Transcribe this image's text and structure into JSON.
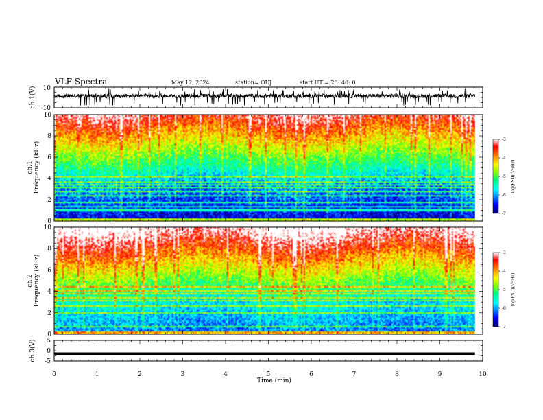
{
  "header": {
    "title": "VLF Spectra",
    "date": "May 12, 2024",
    "station": "station= OUJ",
    "start": "start  UT  =   20: 40: 0"
  },
  "colors": {
    "axis": "#000000",
    "colormap": [
      "#00008b",
      "#0000ff",
      "#00bfff",
      "#00ffff",
      "#7fff00",
      "#ffff00",
      "#ff7f00",
      "#ff0000",
      "#ffffff"
    ]
  },
  "chart_data": [
    {
      "type": "line",
      "panel": "ch1-waveform",
      "ylabel": "ch.1(V)",
      "ylim": [
        -10,
        10
      ],
      "yticks": [
        "10",
        "-10"
      ],
      "xlim": [
        0,
        10
      ],
      "data_extent": [
        0,
        9.82
      ],
      "baseline": 1.5,
      "series": [
        {
          "values_summary": "noisy waveform, mostly between -3 and 4 V with occasional spikes"
        }
      ]
    },
    {
      "type": "heatmap",
      "panel": "ch1-spectrogram",
      "ylabel_1": "ch.1",
      "ylabel_2": "Frequency  (kHz)",
      "ylim": [
        0,
        10
      ],
      "yticks": [
        "0",
        "2",
        "4",
        "6",
        "8",
        "10"
      ],
      "xlim": [
        0,
        10
      ],
      "data_extent": [
        0,
        9.82
      ],
      "colorbar": {
        "label": "log(PSD)(V²/Hz)",
        "ticks": [
          "-3",
          "-4",
          "-5",
          "-6",
          "-7"
        ],
        "range": [
          -7,
          -3
        ]
      }
    },
    {
      "type": "heatmap",
      "panel": "ch2-spectrogram",
      "ylabel_1": "ch.2",
      "ylabel_2": "Frequency  (kHz)",
      "ylim": [
        0,
        10
      ],
      "yticks": [
        "0",
        "2",
        "4",
        "6",
        "8",
        "10"
      ],
      "xlim": [
        0,
        10
      ],
      "data_extent": [
        0,
        9.82
      ],
      "colorbar": {
        "label": "log(PSD)(V²/Hz)",
        "ticks": [
          "-3",
          "-4",
          "-5",
          "-6",
          "-7"
        ],
        "range": [
          -7,
          -3
        ]
      }
    },
    {
      "type": "line",
      "panel": "ch3-waveform",
      "ylabel": "ch.3(V)",
      "ylim": [
        -5,
        5
      ],
      "yticks": [
        "5",
        "0",
        "-5"
      ],
      "xlim": [
        0,
        10
      ],
      "data_extent": [
        0,
        9.82
      ],
      "series": [
        {
          "values_summary": "nearly flat line at about -1.4 V"
        }
      ]
    }
  ],
  "xaxis": {
    "label": "Time  (min)",
    "ticks": [
      "0",
      "1",
      "2",
      "3",
      "4",
      "5",
      "6",
      "7",
      "8",
      "9",
      "10"
    ]
  }
}
